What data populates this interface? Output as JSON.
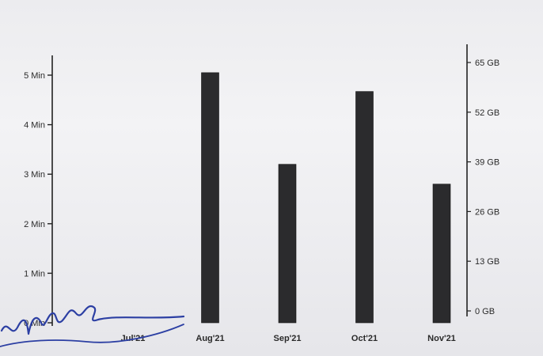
{
  "chart_data": {
    "type": "bar",
    "categories": [
      "Jul'21",
      "Aug'21",
      "Sep'21",
      "Oct'21",
      "Nov'21"
    ],
    "values": [
      0,
      5.05,
      3.2,
      4.67,
      2.8
    ],
    "y_unit": "Min",
    "ylim": [
      0,
      5.5
    ],
    "yticks": [
      "0 Min",
      "1 Min",
      "2 Min",
      "3 Min",
      "4 Min",
      "5 Min"
    ],
    "y2ticks": [
      "0 GB",
      "13 GB",
      "26 GB",
      "39 GB",
      "52 GB",
      "65 GB"
    ],
    "grid": false,
    "legend": "none",
    "bar_color": "#2b2b2d"
  }
}
